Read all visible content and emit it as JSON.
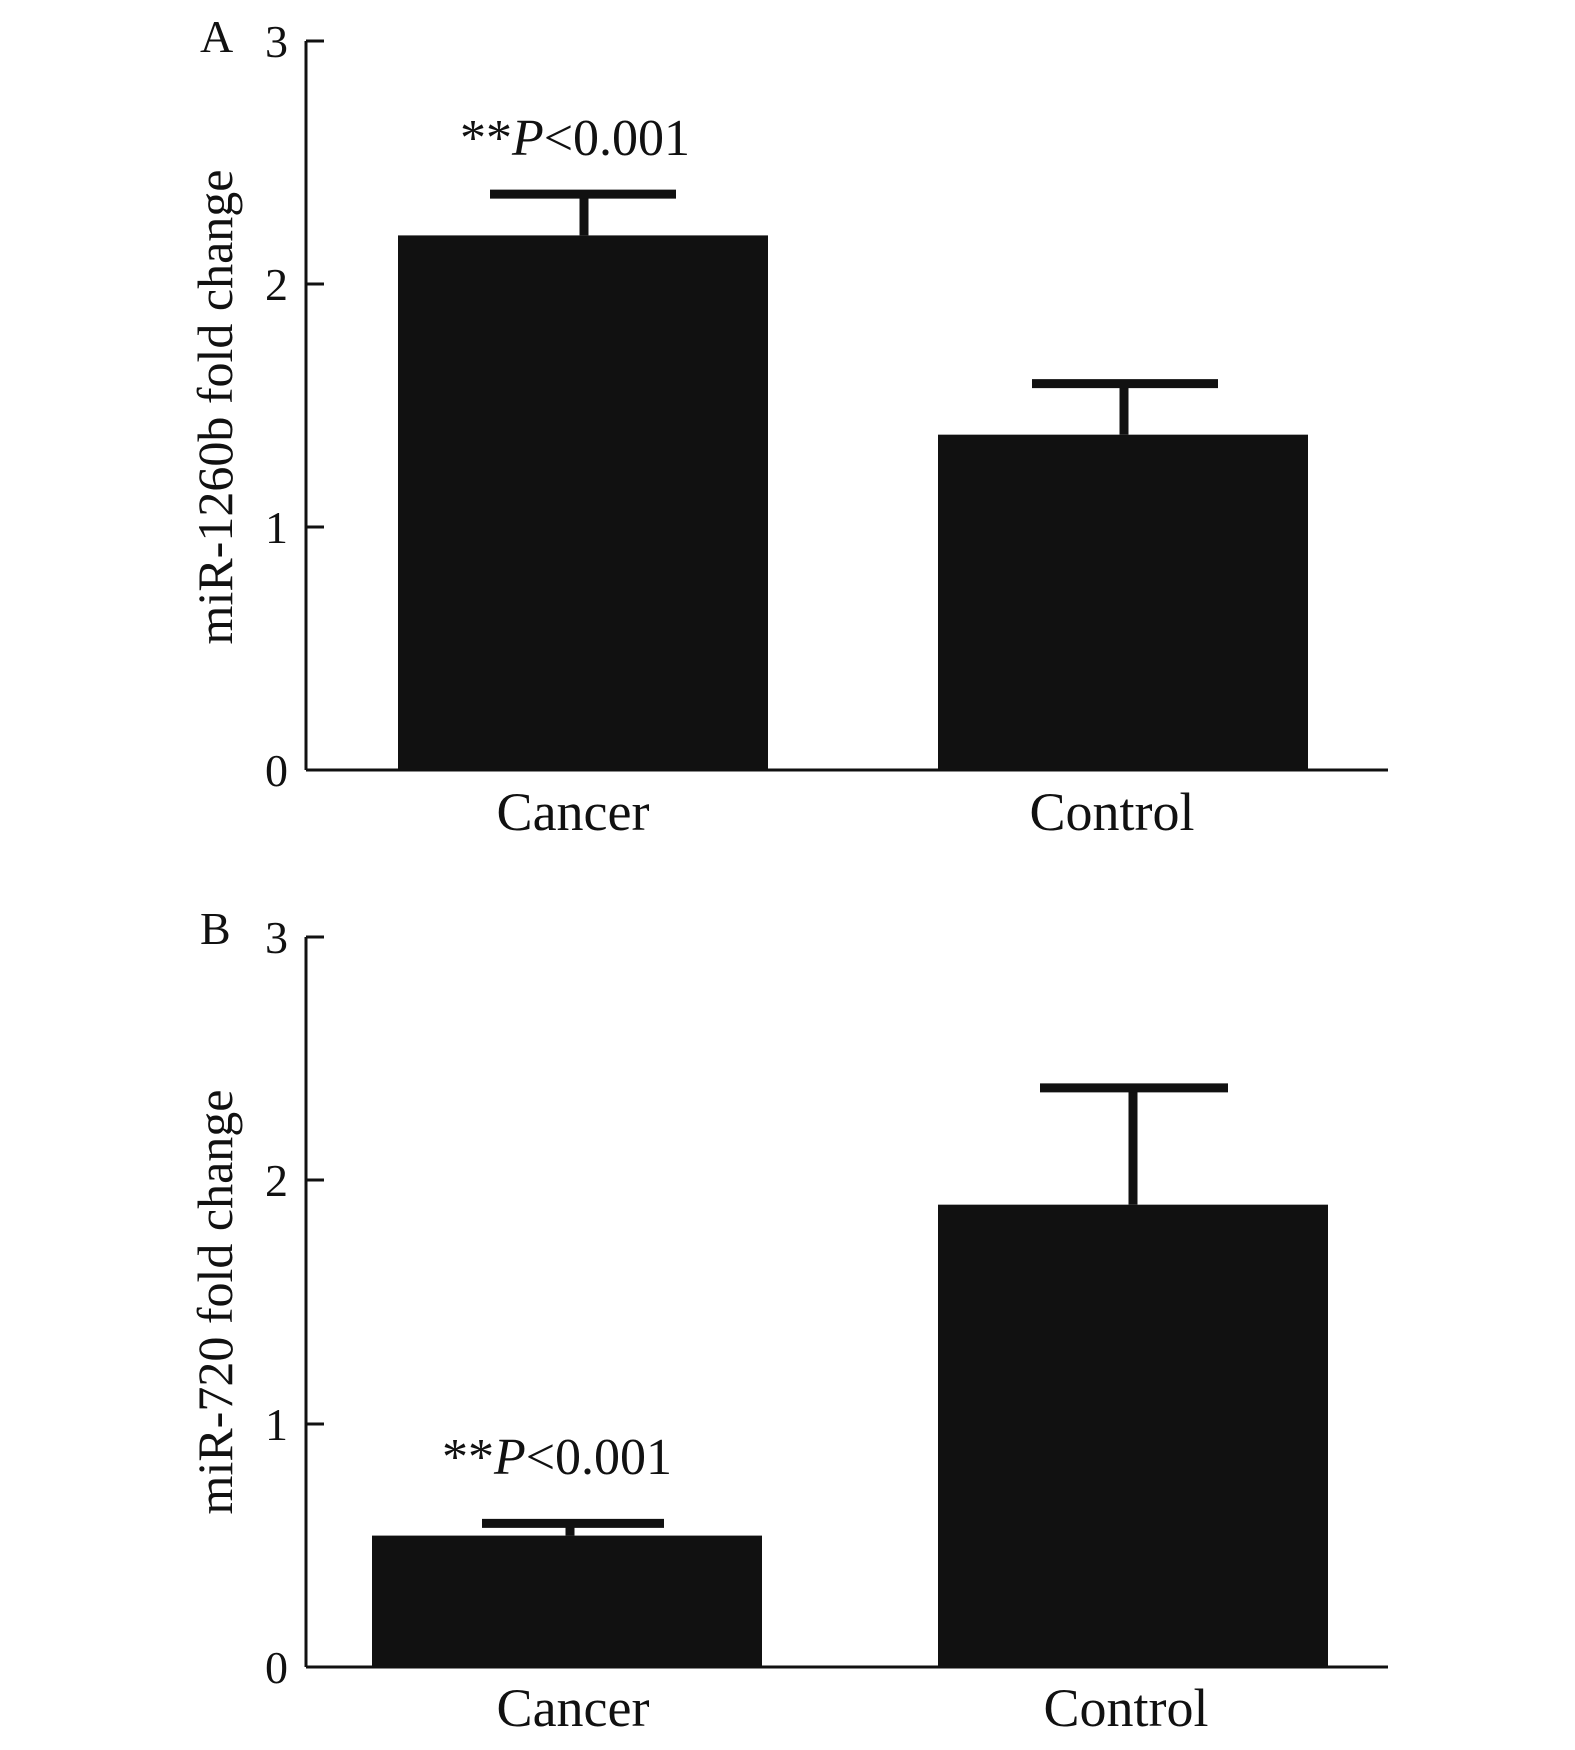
{
  "chart_data": [
    {
      "type": "bar",
      "panel_label": "A",
      "categories": [
        "Cancer",
        "Control"
      ],
      "values": [
        2.2,
        1.38
      ],
      "error_upper": [
        2.37,
        1.59
      ],
      "ylabel": "miR-1260b fold change",
      "xlabel": "",
      "ylim": [
        0,
        3
      ],
      "yticks": [
        "0",
        "1",
        "2",
        "3"
      ],
      "annotations": [
        {
          "category": "Cancer",
          "stars": "**",
          "p_italic": "P",
          "rest": "<0.001"
        }
      ],
      "bar_color": "#111111",
      "grid": false
    },
    {
      "type": "bar",
      "panel_label": "B",
      "categories": [
        "Cancer",
        "Control"
      ],
      "values": [
        0.54,
        1.9
      ],
      "error_upper": [
        0.59,
        2.38
      ],
      "ylabel": "miR-720 fold change",
      "xlabel": "",
      "ylim": [
        0,
        3
      ],
      "yticks": [
        "0",
        "1",
        "2",
        "3"
      ],
      "annotations": [
        {
          "category": "Cancer",
          "stars": "**",
          "p_italic": "P",
          "rest": "<0.001"
        }
      ],
      "bar_color": "#111111",
      "grid": false
    }
  ]
}
